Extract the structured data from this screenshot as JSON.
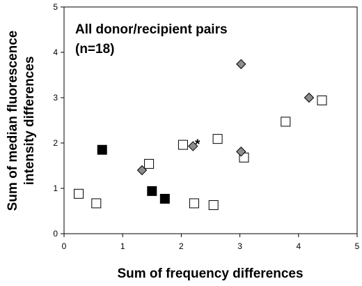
{
  "chart_data": {
    "type": "scatter",
    "title": "",
    "annotations": [
      "All donor/recipient pairs",
      "(n=18)"
    ],
    "asterisk": "*",
    "xlabel": "Sum of frequency differences",
    "ylabel_lines": [
      "Sum of median fluorescence",
      "intensity differences"
    ],
    "xlim": [
      0,
      5
    ],
    "ylim": [
      0,
      5
    ],
    "xticks": [
      0,
      1,
      2,
      3,
      4,
      5
    ],
    "yticks": [
      0,
      1,
      2,
      3,
      4,
      5
    ],
    "grid": false,
    "legend": "none",
    "series": [
      {
        "marker": "open-square",
        "color": "#ffffff",
        "points": [
          {
            "x": 0.25,
            "y": 0.88
          },
          {
            "x": 0.55,
            "y": 0.67
          },
          {
            "x": 1.45,
            "y": 1.54
          },
          {
            "x": 2.03,
            "y": 1.96
          },
          {
            "x": 2.22,
            "y": 0.67
          },
          {
            "x": 2.55,
            "y": 0.63
          },
          {
            "x": 2.62,
            "y": 2.09
          },
          {
            "x": 3.07,
            "y": 1.68
          },
          {
            "x": 3.78,
            "y": 2.47
          },
          {
            "x": 4.4,
            "y": 2.94
          }
        ]
      },
      {
        "marker": "filled-square",
        "color": "#000000",
        "points": [
          {
            "x": 0.65,
            "y": 1.85
          },
          {
            "x": 1.5,
            "y": 0.94
          },
          {
            "x": 1.72,
            "y": 0.77
          }
        ]
      },
      {
        "marker": "diamond",
        "color": "#8c8c8c",
        "points": [
          {
            "x": 1.33,
            "y": 1.4
          },
          {
            "x": 2.2,
            "y": 1.93
          },
          {
            "x": 3.02,
            "y": 3.74
          },
          {
            "x": 3.02,
            "y": 1.81
          },
          {
            "x": 4.18,
            "y": 3.0
          }
        ]
      }
    ]
  }
}
